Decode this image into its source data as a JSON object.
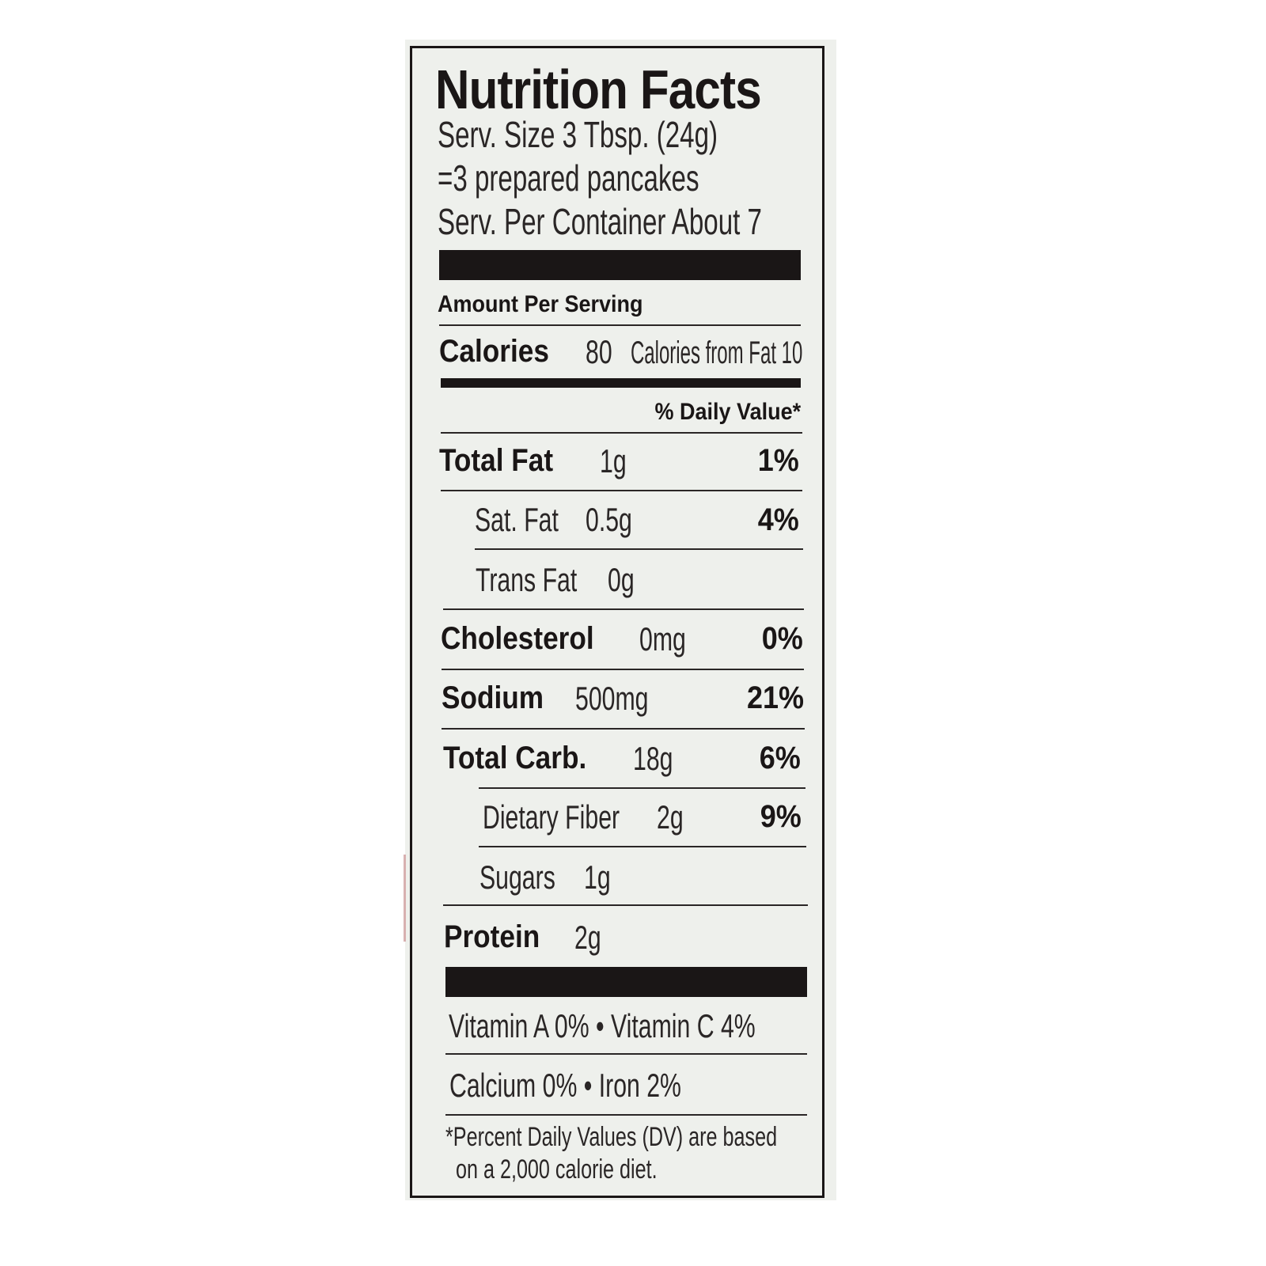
{
  "title": "Nutrition Facts",
  "serving": {
    "size": "Serv. Size  3 Tbsp. (24g)",
    "equivalent": "=3 prepared pancakes",
    "per_container": "Serv. Per Container  About 7"
  },
  "amount_per_serving": "Amount Per Serving",
  "calories": {
    "label": "Calories",
    "value": "80",
    "from_fat": "Calories from Fat 10"
  },
  "daily_value_header": "% Daily Value*",
  "nutrients": [
    {
      "label": "Total Fat",
      "amount": "1g",
      "dv": "1%"
    },
    {
      "label": "Sat. Fat",
      "amount": "0.5g",
      "dv": "4%"
    },
    {
      "label": "Trans Fat",
      "amount": "0g",
      "dv": ""
    },
    {
      "label": "Cholesterol",
      "amount": "0mg",
      "dv": "0%"
    },
    {
      "label": "Sodium",
      "amount": "500mg",
      "dv": "21%"
    },
    {
      "label": "Total Carb.",
      "amount": "18g",
      "dv": "6%"
    },
    {
      "label": "Dietary Fiber",
      "amount": "2g",
      "dv": "9%"
    },
    {
      "label": "Sugars",
      "amount": "1g",
      "dv": ""
    },
    {
      "label": "Protein",
      "amount": "2g",
      "dv": ""
    }
  ],
  "vitamins": {
    "row1": "Vitamin A  0% •  Vitamin C  4%",
    "row2": "Calcium  0%   •  Iron  2%"
  },
  "footnote": {
    "line1": "*Percent Daily Values (DV) are based",
    "line2": "on  a 2,000 calorie diet."
  }
}
